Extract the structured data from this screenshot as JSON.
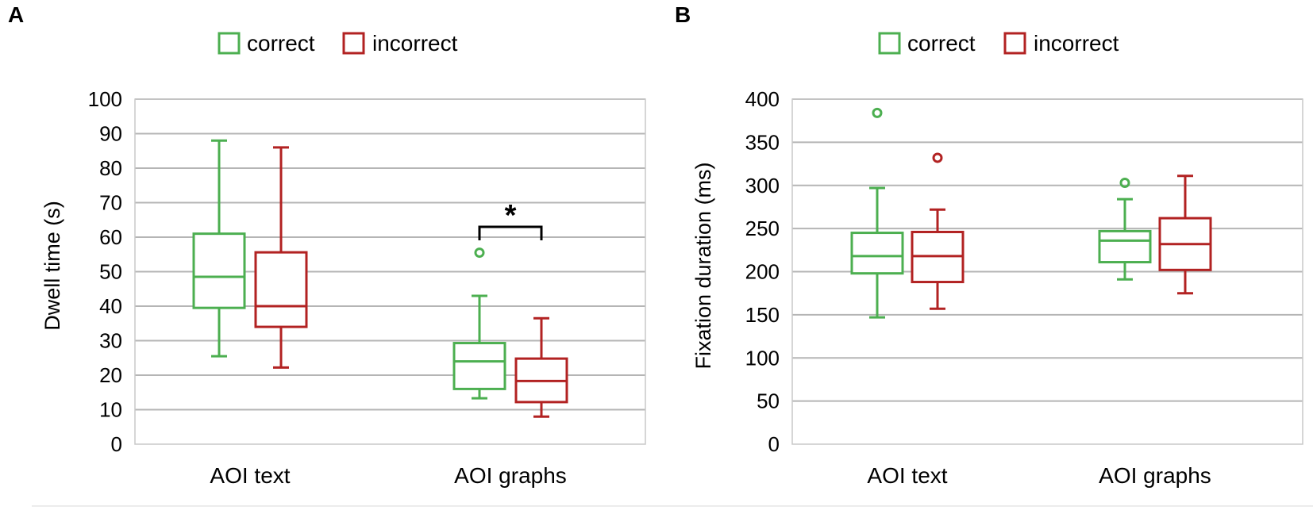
{
  "chart_data": [
    {
      "type": "box",
      "panel_label": "A",
      "ylabel": "Dwell time (s)",
      "ylim": [
        0,
        100
      ],
      "yticks": [
        0,
        10,
        20,
        30,
        40,
        50,
        60,
        70,
        80,
        90,
        100
      ],
      "grid": true,
      "legend": {
        "placement": "top-center",
        "entries": [
          "correct",
          "incorrect"
        ]
      },
      "categories": [
        "AOI text",
        "AOI graphs"
      ],
      "series": [
        {
          "name": "correct",
          "color": "#4caf50",
          "boxes": [
            {
              "min": 25.5,
              "q1": 39.5,
              "median": 48.5,
              "q3": 61,
              "max": 88,
              "outliers": []
            },
            {
              "min": 13.3,
              "q1": 16,
              "median": 24,
              "q3": 29.3,
              "max": 43,
              "outliers": [
                55.5
              ]
            }
          ]
        },
        {
          "name": "incorrect",
          "color": "#b22222",
          "boxes": [
            {
              "min": 22.2,
              "q1": 34,
              "median": 40,
              "q3": 55.6,
              "max": 86,
              "outliers": []
            },
            {
              "min": 8,
              "q1": 12.2,
              "median": 18.3,
              "q3": 24.8,
              "max": 36.5,
              "outliers": []
            }
          ]
        }
      ],
      "annotations": [
        {
          "type": "significance-bracket",
          "category": "AOI graphs",
          "label": "*",
          "y": 63
        }
      ]
    },
    {
      "type": "box",
      "panel_label": "B",
      "ylabel": "Fixation duration (ms)",
      "ylim": [
        0,
        400
      ],
      "yticks": [
        0,
        50,
        100,
        150,
        200,
        250,
        300,
        350,
        400
      ],
      "grid": true,
      "legend": {
        "placement": "top-center",
        "entries": [
          "correct",
          "incorrect"
        ]
      },
      "categories": [
        "AOI text",
        "AOI graphs"
      ],
      "series": [
        {
          "name": "correct",
          "color": "#4caf50",
          "boxes": [
            {
              "min": 147,
              "q1": 198,
              "median": 218,
              "q3": 245,
              "max": 297,
              "outliers": [
                384
              ]
            },
            {
              "min": 191,
              "q1": 211,
              "median": 236,
              "q3": 247,
              "max": 284,
              "outliers": [
                303
              ]
            }
          ]
        },
        {
          "name": "incorrect",
          "color": "#b22222",
          "boxes": [
            {
              "min": 157,
              "q1": 188,
              "median": 218,
              "q3": 246,
              "max": 272,
              "outliers": [
                332
              ]
            },
            {
              "min": 175,
              "q1": 202,
              "median": 232,
              "q3": 262,
              "max": 311,
              "outliers": []
            }
          ]
        }
      ],
      "annotations": []
    }
  ]
}
